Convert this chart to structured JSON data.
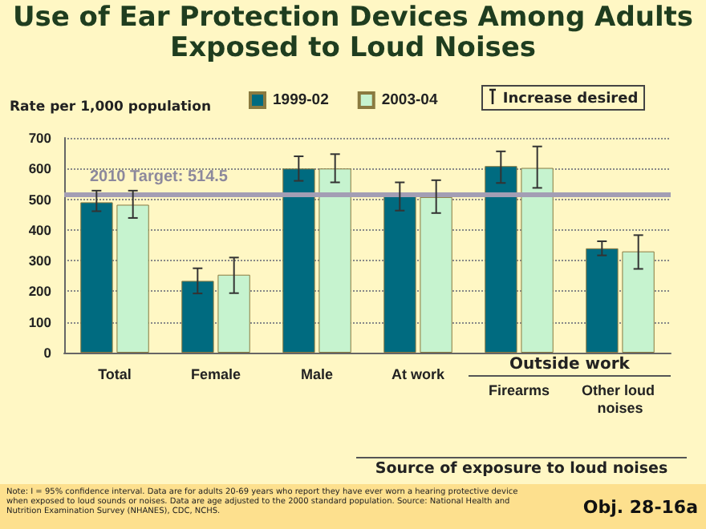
{
  "chart_data": {
    "type": "bar",
    "title": "Use of Ear Protection Devices Among Adults Exposed to Loud Noises",
    "ylabel": "Rate per 1,000 population",
    "categories": [
      "Total",
      "Female",
      "Male",
      "At work",
      "Firearms",
      "Other loud noises"
    ],
    "series": [
      {
        "name": "1999-02",
        "color": "#006b80",
        "values": [
          490,
          234,
          600,
          510,
          608,
          340
        ],
        "errors": [
          [
            461,
            528
          ],
          [
            193,
            275
          ],
          [
            560,
            640
          ],
          [
            463,
            555
          ],
          [
            553,
            656
          ],
          [
            317,
            363
          ]
        ]
      },
      {
        "name": "2003-04",
        "color": "#c6f3cf",
        "values": [
          482,
          254,
          600,
          507,
          602,
          330
        ],
        "errors": [
          [
            439,
            528
          ],
          [
            194,
            310
          ],
          [
            555,
            647
          ],
          [
            455,
            562
          ],
          [
            537,
            672
          ],
          [
            273,
            383
          ]
        ]
      }
    ],
    "ylim": [
      0,
      700
    ],
    "yticks": [
      0,
      100,
      200,
      300,
      400,
      500,
      600,
      700
    ],
    "grid": "y",
    "legend": "top",
    "ref_lines": [
      {
        "axis": "y",
        "value": 514.5,
        "label": "2010 Target: 514.5",
        "color": "#a39eb4"
      }
    ],
    "annotations": [
      "Outside work",
      "Source of exposure to loud noises",
      "Increase desired",
      "Note: I = 95% confidence interval. Data are for adults 20-69 years who report they have ever worn a hearing protective device when exposed to loud sounds or noises. Data are age adjusted to the 2000 standard population.",
      "Source: National Health and Nutrition Examination Survey (NHANES), CDC, NCHS.",
      "Obj. 28-16a"
    ]
  }
}
